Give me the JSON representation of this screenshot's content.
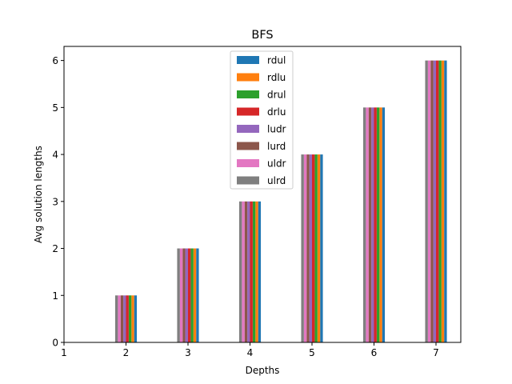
{
  "chart_data": {
    "type": "bar",
    "title": "BFS",
    "xlabel": "Depths",
    "ylabel": "Avg solution lengths",
    "x_ticks": [
      "1",
      "2",
      "3",
      "4",
      "5",
      "6",
      "7"
    ],
    "y_ticks": [
      "0",
      "1",
      "2",
      "3",
      "4",
      "5",
      "6"
    ],
    "xlim": [
      1,
      7.4
    ],
    "ylim": [
      0,
      6.3
    ],
    "categories": [
      2,
      3,
      4,
      5,
      6,
      7
    ],
    "series": [
      {
        "name": "rdul",
        "color": "#1f77b4",
        "values": [
          1,
          2,
          3,
          4,
          5,
          6
        ]
      },
      {
        "name": "rdlu",
        "color": "#ff7f0e",
        "values": [
          1,
          2,
          3,
          4,
          5,
          6
        ]
      },
      {
        "name": "drul",
        "color": "#2ca02c",
        "values": [
          1,
          2,
          3,
          4,
          5,
          6
        ]
      },
      {
        "name": "drlu",
        "color": "#d62728",
        "values": [
          1,
          2,
          3,
          4,
          5,
          6
        ]
      },
      {
        "name": "ludr",
        "color": "#9467bd",
        "values": [
          1,
          2,
          3,
          4,
          5,
          6
        ]
      },
      {
        "name": "lurd",
        "color": "#8c564b",
        "values": [
          1,
          2,
          3,
          4,
          5,
          6
        ]
      },
      {
        "name": "uldr",
        "color": "#e377c2",
        "values": [
          1,
          2,
          3,
          4,
          5,
          6
        ]
      },
      {
        "name": "ulrd",
        "color": "#7f7f7f",
        "values": [
          1,
          2,
          3,
          4,
          5,
          6
        ]
      }
    ],
    "legend_position": "top-center",
    "grid": false
  }
}
